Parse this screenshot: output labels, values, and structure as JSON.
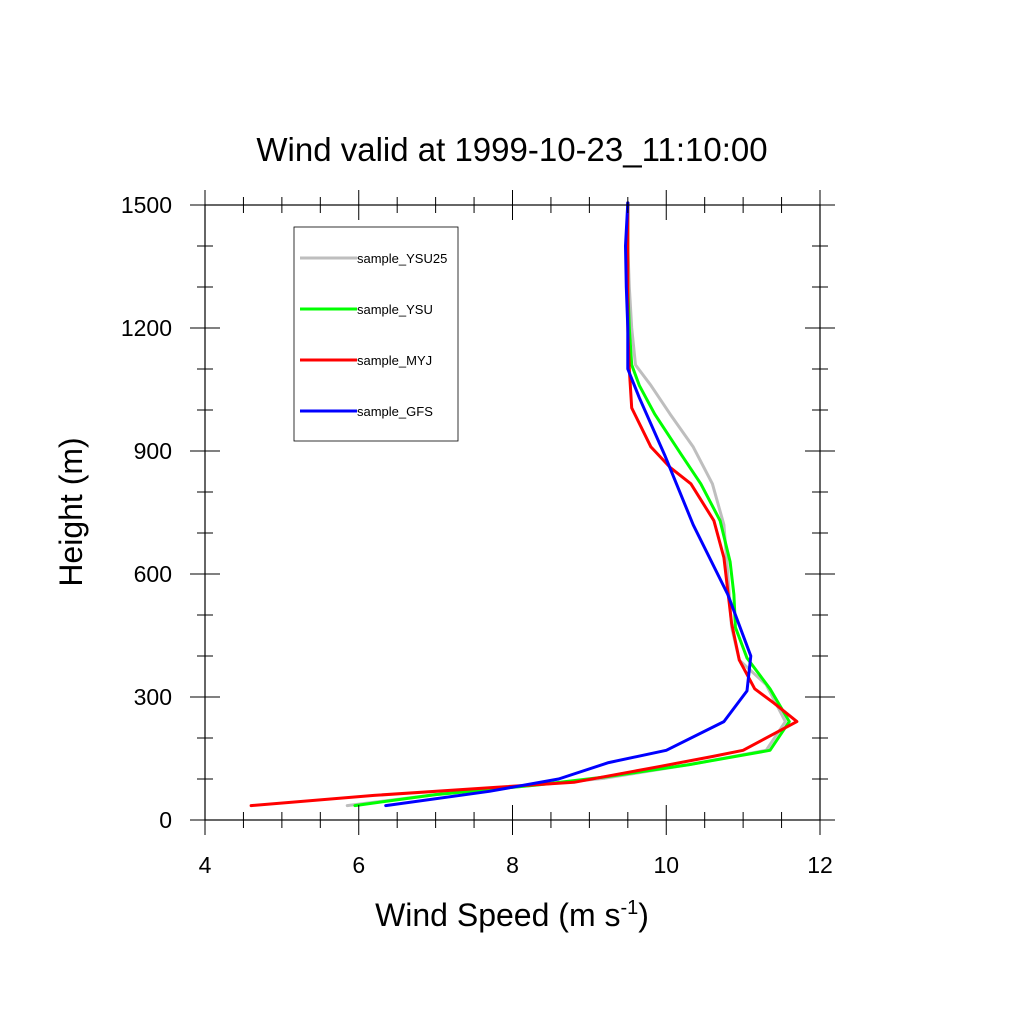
{
  "chart_data": {
    "type": "line",
    "title": "Wind valid at 1999-10-23_11:10:00",
    "xlabel": "Wind Speed (m s",
    "xlabel_sup": "-1",
    "xlabel_close": ")",
    "ylabel": "Height (m)",
    "xlim": [
      4,
      12
    ],
    "ylim": [
      0,
      1500
    ],
    "xticks": [
      4,
      6,
      8,
      10,
      12
    ],
    "yticks": [
      0,
      300,
      600,
      900,
      1200,
      1500
    ],
    "legend_position": "top-left",
    "series": [
      {
        "name": "sample_YSU25",
        "color": "#bebebe",
        "points": [
          [
            5.85,
            35
          ],
          [
            7.0,
            62
          ],
          [
            8.3,
            85
          ],
          [
            9.2,
            102
          ],
          [
            10.3,
            135
          ],
          [
            11.3,
            170
          ],
          [
            11.55,
            240
          ],
          [
            11.3,
            330
          ],
          [
            10.95,
            390
          ],
          [
            10.85,
            470
          ],
          [
            10.8,
            600
          ],
          [
            10.75,
            720
          ],
          [
            10.6,
            820
          ],
          [
            10.35,
            910
          ],
          [
            10.05,
            990
          ],
          [
            9.8,
            1060
          ],
          [
            9.6,
            1110
          ],
          [
            9.55,
            1200
          ],
          [
            9.52,
            1300
          ],
          [
            9.5,
            1400
          ],
          [
            9.5,
            1505
          ]
        ]
      },
      {
        "name": "sample_YSU",
        "color": "#00ff00",
        "points": [
          [
            5.95,
            35
          ],
          [
            7.0,
            62
          ],
          [
            8.3,
            85
          ],
          [
            9.2,
            105
          ],
          [
            10.3,
            135
          ],
          [
            11.35,
            170
          ],
          [
            11.6,
            240
          ],
          [
            11.35,
            320
          ],
          [
            11.05,
            395
          ],
          [
            10.9,
            470
          ],
          [
            10.88,
            550
          ],
          [
            10.83,
            630
          ],
          [
            10.7,
            730
          ],
          [
            10.45,
            820
          ],
          [
            10.2,
            890
          ],
          [
            9.85,
            990
          ],
          [
            9.65,
            1060
          ],
          [
            9.55,
            1110
          ],
          [
            9.52,
            1200
          ],
          [
            9.5,
            1300
          ],
          [
            9.5,
            1505
          ]
        ]
      },
      {
        "name": "sample_MYJ",
        "color": "#ff0000",
        "points": [
          [
            4.6,
            35
          ],
          [
            6.2,
            60
          ],
          [
            7.8,
            80
          ],
          [
            8.8,
            92
          ],
          [
            9.9,
            130
          ],
          [
            10.6,
            155
          ],
          [
            11.0,
            170
          ],
          [
            11.7,
            240
          ],
          [
            11.4,
            285
          ],
          [
            11.15,
            320
          ],
          [
            10.95,
            390
          ],
          [
            10.85,
            480
          ],
          [
            10.75,
            640
          ],
          [
            10.62,
            730
          ],
          [
            10.32,
            820
          ],
          [
            10.05,
            860
          ],
          [
            9.8,
            910
          ],
          [
            9.55,
            1005
          ],
          [
            9.52,
            1100
          ],
          [
            9.5,
            1200
          ],
          [
            9.5,
            1300
          ],
          [
            9.5,
            1505
          ]
        ]
      },
      {
        "name": "sample_GFS",
        "color": "#0000ff",
        "points": [
          [
            6.35,
            35
          ],
          [
            7.7,
            70
          ],
          [
            8.6,
            100
          ],
          [
            9.25,
            140
          ],
          [
            10.0,
            170
          ],
          [
            10.75,
            240
          ],
          [
            11.05,
            315
          ],
          [
            11.1,
            400
          ],
          [
            10.8,
            550
          ],
          [
            10.35,
            720
          ],
          [
            9.98,
            890
          ],
          [
            9.65,
            1030
          ],
          [
            9.5,
            1100
          ],
          [
            9.5,
            1200
          ],
          [
            9.48,
            1300
          ],
          [
            9.47,
            1400
          ],
          [
            9.5,
            1505
          ]
        ]
      }
    ]
  }
}
